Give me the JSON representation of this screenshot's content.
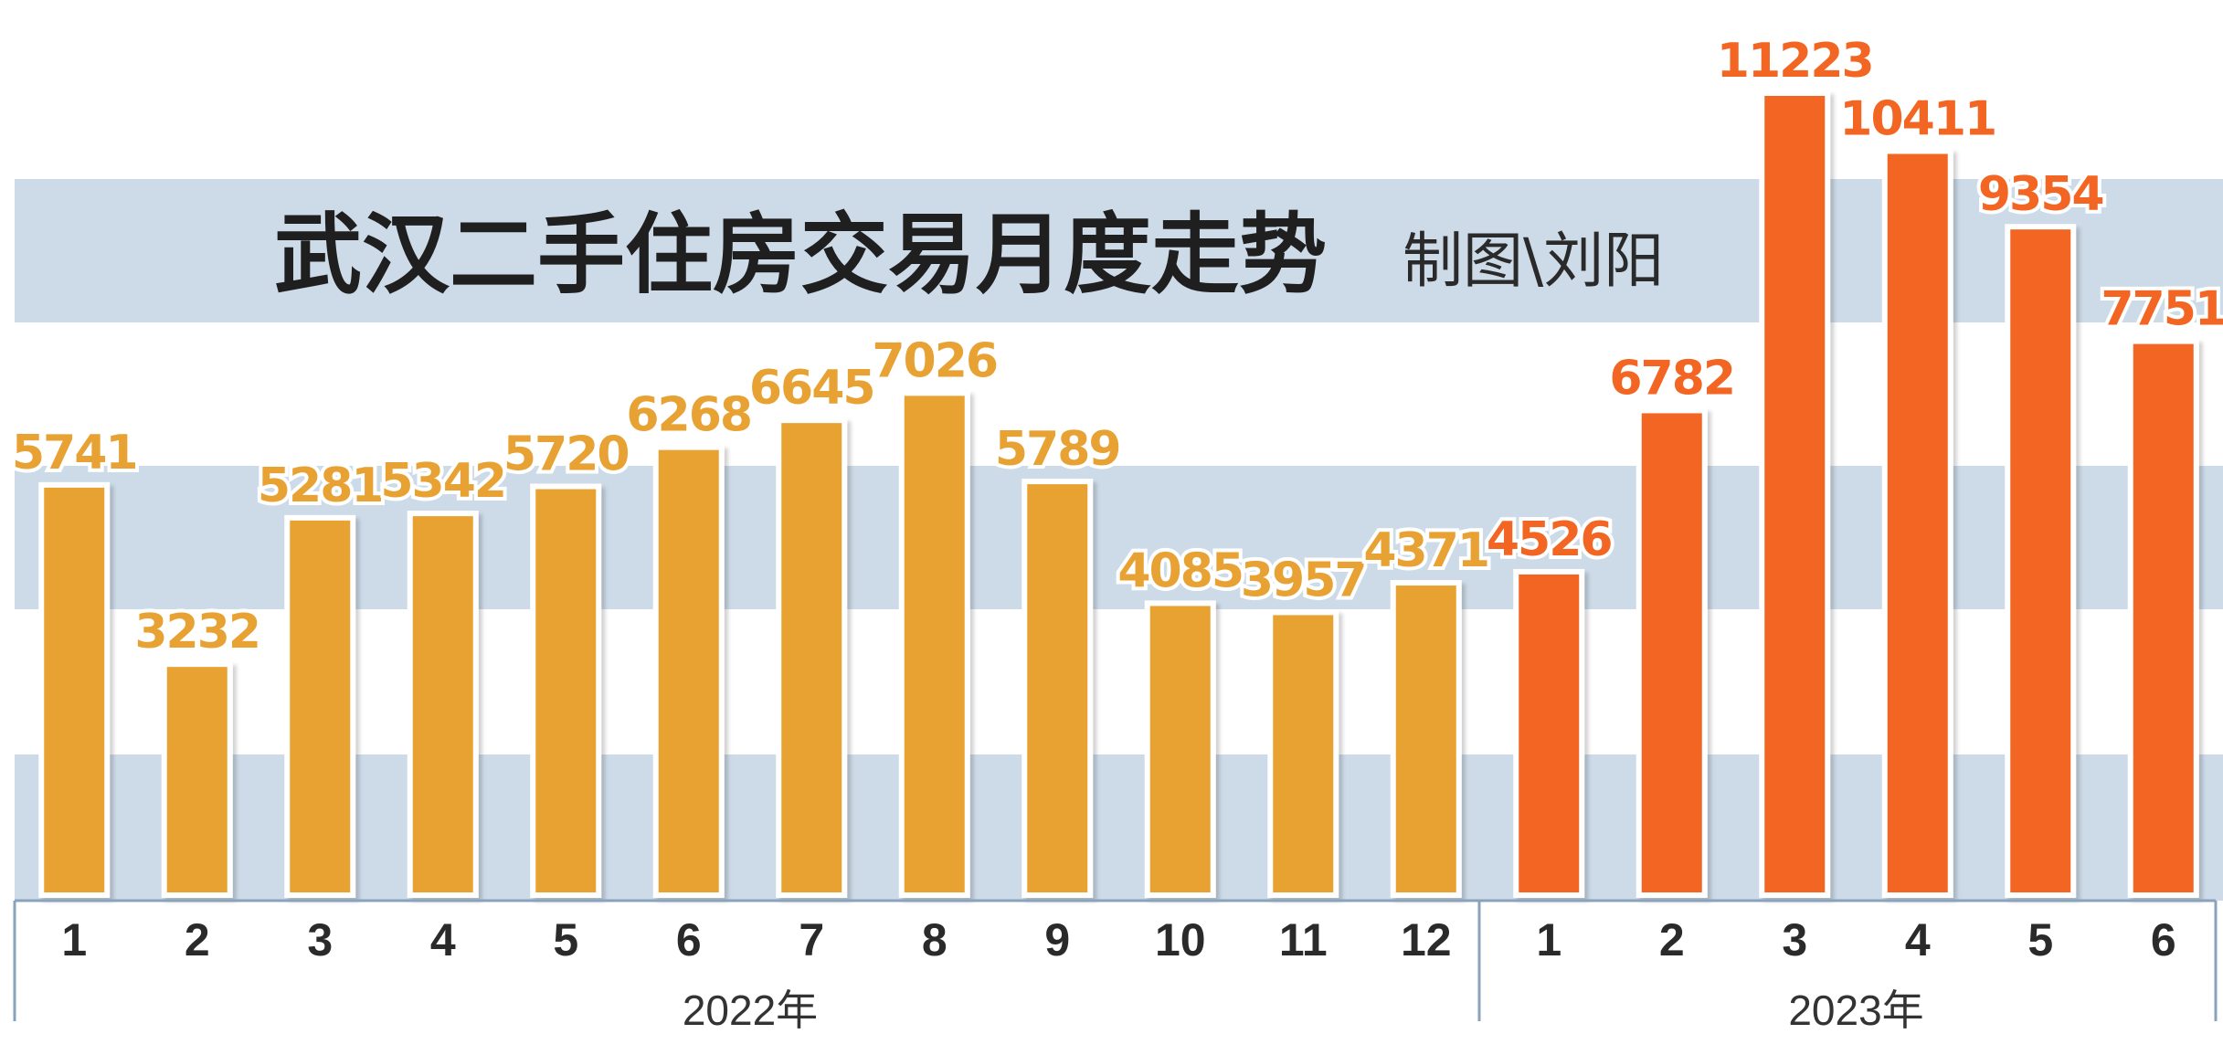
{
  "chart_data": {
    "type": "bar",
    "title": "武汉二手住房交易月度走势",
    "credit": "制图\\刘阳",
    "groups": [
      {
        "year_label": "2022年",
        "color": "#e8a233",
        "value_color": "#e8a233",
        "categories": [
          "1",
          "2",
          "3",
          "4",
          "5",
          "6",
          "7",
          "8",
          "9",
          "10",
          "11",
          "12"
        ],
        "values": [
          5741,
          3232,
          5281,
          5342,
          5720,
          6268,
          6645,
          7026,
          5789,
          4085,
          3957,
          4371
        ]
      },
      {
        "year_label": "2023年",
        "color": "#f26522",
        "value_color": "#f26522",
        "categories": [
          "1",
          "2",
          "3",
          "4",
          "5",
          "6"
        ],
        "values": [
          4526,
          6782,
          11223,
          10411,
          9354,
          7751
        ]
      }
    ],
    "ylim": [
      0,
      11223
    ],
    "grid": "horizontal bands",
    "band_color": "#cddbe8"
  }
}
